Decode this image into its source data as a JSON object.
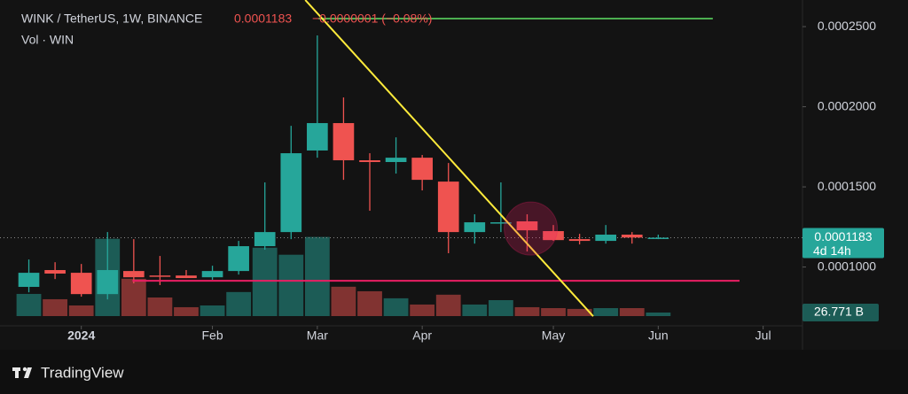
{
  "chart_data": {
    "type": "candlestick",
    "title": "WINK / TetherUS, 1W, BINANCE",
    "last_price_label": "0.0001183",
    "change_label": "−0.0000001 (−0.08%)",
    "countdown": "4d 14h",
    "volume_title": "Vol · WIN",
    "brand": "TradingView",
    "x": [
      0,
      1,
      2,
      3,
      4,
      5,
      6,
      7,
      8,
      9,
      10,
      11,
      12,
      13,
      14,
      15,
      16,
      17,
      18,
      19,
      20,
      21,
      22,
      23,
      24
    ],
    "xlim": [
      -1.1,
      29.5
    ],
    "xticks": [
      {
        "value": 2,
        "label": "2024"
      },
      {
        "value": 7,
        "label": "Feb"
      },
      {
        "value": 11,
        "label": "Mar"
      },
      {
        "value": 15,
        "label": "Apr"
      },
      {
        "value": 20,
        "label": "May"
      },
      {
        "value": 24,
        "label": "Jun"
      },
      {
        "value": 28,
        "label": "Jul"
      }
    ],
    "ylim": [
      6.22e-05,
      0.0002666
    ],
    "yticks": [
      {
        "value": 0.00025,
        "label": "0.0002500"
      },
      {
        "value": 0.0002,
        "label": "0.0002000"
      },
      {
        "value": 0.00015,
        "label": "0.0001500"
      },
      {
        "value": 0.0001,
        "label": "0.0001000"
      }
    ],
    "up_color": "#26a69a",
    "down_color": "#ef5350",
    "open": [
      8.76e-05,
      9.81e-05,
      9.64e-05,
      8.31e-05,
      9.75e-05,
      9.47e-05,
      9.47e-05,
      9.36e-05,
      9.75e-05,
      0.000113,
      0.0001218,
      0.0001727,
      0.0001898,
      0.0001666,
      0.0001655,
      0.0001682,
      0.0001533,
      0.0001218,
      0.0001273,
      0.0001285,
      0.0001224,
      0.0001174,
      0.0001163,
      0.0001202,
      0.000118
    ],
    "high": [
      0.0001047,
      0.000103,
      0.0001019,
      0.0001218,
      0.0001174,
      0.0001069,
      9.81e-05,
      0.0001008,
      0.0001163,
      0.0001528,
      0.0001881,
      0.0002445,
      0.0002058,
      0.000171,
      0.0001809,
      0.0001699,
      0.0001649,
      0.0001329,
      0.0001528,
      0.0001329,
      0.0001262,
      0.0001207,
      0.0001262,
      0.0001218,
      0.0001202
    ],
    "low": [
      8.42e-05,
      9.25e-05,
      8.15e-05,
      7.98e-05,
      8.98e-05,
      8.87e-05,
      9.31e-05,
      9.2e-05,
      9.53e-05,
      0.0001108,
      0.0001174,
      0.0001682,
      0.0001544,
      0.0001351,
      0.0001583,
      0.0001478,
      0.0001086,
      0.0001146,
      0.0001218,
      0.0001097,
      0.0001163,
      0.0001141,
      0.0001146,
      0.0001146,
      0.0001174
    ],
    "close": [
      9.64e-05,
      9.59e-05,
      8.31e-05,
      9.81e-05,
      9.36e-05,
      9.42e-05,
      9.31e-05,
      9.75e-05,
      0.000113,
      0.0001218,
      0.000171,
      0.0001898,
      0.0001666,
      0.0001655,
      0.0001682,
      0.0001544,
      0.0001218,
      0.0001279,
      0.0001279,
      0.0001229,
      0.0001168,
      0.0001163,
      0.0001202,
      0.0001184,
      0.0001183
    ],
    "volume": {
      "values": [
        167,
        127,
        80,
        582,
        281,
        140,
        67,
        80,
        181,
        515,
        462,
        596,
        221,
        187,
        134,
        87,
        161,
        87,
        120,
        67,
        60,
        54,
        60,
        60,
        26.771
      ],
      "ylim": [
        0,
        700
      ],
      "last_label": "26.771 B"
    },
    "hlines": [
      {
        "value": 0.000255,
        "from": 11.05,
        "to": 26.08,
        "color": "#4caf50"
      },
      {
        "value": 9.14e-05,
        "from": 3.95,
        "to": 27.1,
        "color": "#e91e63"
      }
    ],
    "trendline": {
      "x": [
        10.54,
        21.52
      ],
      "y": [
        0.0002666,
        6.93e-05
      ],
      "color": "#ffeb3b"
    },
    "highlight": {
      "x": 19.14,
      "y": 0.000124,
      "color": "#e91e63"
    }
  }
}
